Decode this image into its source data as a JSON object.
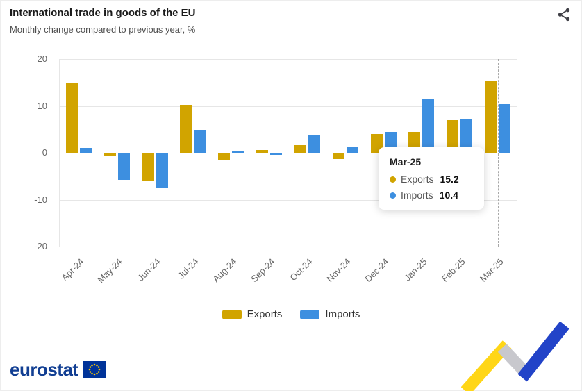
{
  "header": {
    "title": "International trade in goods of the EU",
    "subtitle": "Monthly change compared to previous year, %"
  },
  "toolbar": {
    "share_label": "Share"
  },
  "chart_data": {
    "type": "bar",
    "title": "International trade in goods of the EU",
    "subtitle": "Monthly change compared to previous year, %",
    "categories": [
      "Apr-24",
      "May-24",
      "Jun-24",
      "Jul-24",
      "Aug-24",
      "Sep-24",
      "Oct-24",
      "Nov-24",
      "Dec-24",
      "Jan-25",
      "Feb-25",
      "Mar-25"
    ],
    "series": [
      {
        "name": "Exports",
        "color": "#D1A400",
        "values": [
          15.0,
          -0.8,
          -6.0,
          10.2,
          -1.5,
          0.6,
          1.6,
          -1.4,
          4.0,
          4.5,
          7.0,
          15.2
        ]
      },
      {
        "name": "Imports",
        "color": "#3D8FE0",
        "values": [
          1.0,
          -5.8,
          -7.6,
          4.9,
          0.3,
          -0.4,
          3.7,
          1.3,
          4.4,
          11.4,
          7.2,
          10.4
        ]
      }
    ],
    "ylim": [
      -20,
      20
    ],
    "yticks": [
      20,
      10,
      0,
      -10,
      -20
    ],
    "grid": true,
    "legend_position": "bottom",
    "highlight_index": 11
  },
  "tooltip": {
    "title": "Mar-25",
    "rows": [
      {
        "label": "Exports",
        "value": "15.2"
      },
      {
        "label": "Imports",
        "value": "10.4"
      }
    ]
  },
  "footer": {
    "logo_text": "eurostat"
  },
  "colors": {
    "exports": "#D1A400",
    "imports": "#3D8FE0",
    "logo_blue": "#123F93",
    "flag_blue": "#003399",
    "star_yellow": "#FFCC00",
    "arrow_yellow": "#FFD617",
    "arrow_gray": "#C8C8CD",
    "arrow_blue": "#2243C8"
  }
}
